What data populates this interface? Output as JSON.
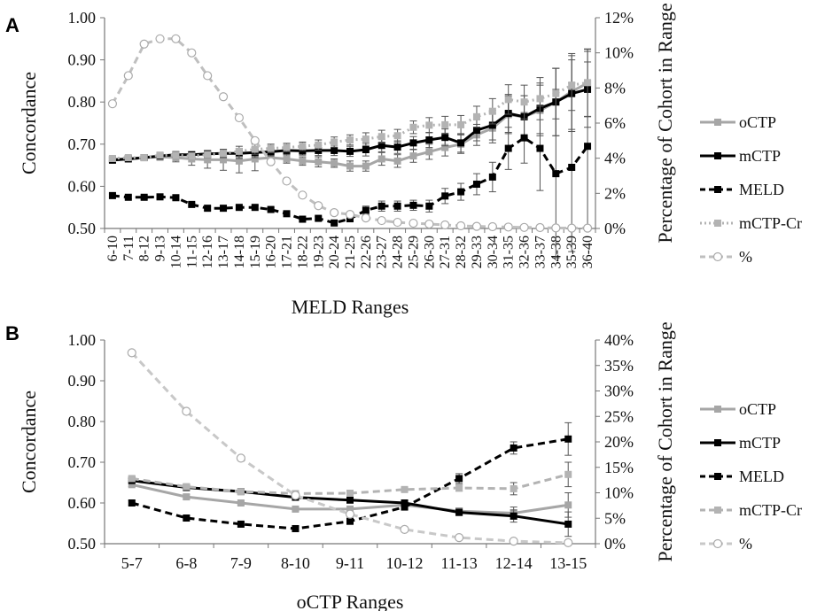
{
  "chart_data": [
    {
      "panel": "A",
      "type": "line",
      "xlabel": "MELD Ranges",
      "ylabel": "Concordance",
      "y2label": "Percentage of Cohort in Range",
      "ylim": [
        0.5,
        1.0
      ],
      "y2lim": [
        0,
        12
      ],
      "yticks": [
        "0.50",
        "0.60",
        "0.70",
        "0.80",
        "0.90",
        "1.00"
      ],
      "y2ticks": [
        "0%",
        "2%",
        "4%",
        "6%",
        "8%",
        "10%",
        "12%"
      ],
      "categories": [
        "6-10",
        "7-11",
        "8-12",
        "9-13",
        "10-14",
        "11-15",
        "12-16",
        "13-17",
        "14-18",
        "15-19",
        "16-20",
        "17-21",
        "18-22",
        "19-23",
        "20-24",
        "21-25",
        "22-26",
        "23-27",
        "24-28",
        "25-29",
        "26-30",
        "27-31",
        "28-32",
        "29-33",
        "30-34",
        "31-35",
        "32-36",
        "33-37",
        "34-38",
        "35-39",
        "36-40"
      ],
      "series": [
        {
          "name": "oCTP",
          "axis": "left",
          "color": "#a6a6a6",
          "style": "solid",
          "marker": "square",
          "values": [
            0.665,
            0.665,
            0.668,
            0.67,
            0.668,
            0.665,
            0.663,
            0.663,
            0.66,
            0.665,
            0.668,
            0.665,
            0.66,
            0.658,
            0.655,
            0.648,
            0.648,
            0.665,
            0.66,
            0.672,
            0.682,
            0.692,
            0.7,
            0.722,
            0.738,
            0.77,
            0.765,
            0.78,
            0.8,
            0.825,
            0.845
          ],
          "errors": [
            0.005,
            0.005,
            0.006,
            0.008,
            0.01,
            0.015,
            0.02,
            0.025,
            0.028,
            0.028,
            0.01,
            0.01,
            0.01,
            0.012,
            0.01,
            0.012,
            0.012,
            0.015,
            0.015,
            0.015,
            0.018,
            0.02,
            0.022,
            0.025,
            0.035,
            0.045,
            0.05,
            0.06,
            0.08,
            0.09,
            0.08
          ]
        },
        {
          "name": "mCTP",
          "axis": "left",
          "color": "#000000",
          "style": "solid",
          "marker": "square",
          "values": [
            0.662,
            0.665,
            0.668,
            0.672,
            0.675,
            0.675,
            0.677,
            0.678,
            0.678,
            0.68,
            0.682,
            0.685,
            0.684,
            0.685,
            0.685,
            0.683,
            0.687,
            0.697,
            0.693,
            0.703,
            0.71,
            0.716,
            0.703,
            0.733,
            0.745,
            0.773,
            0.765,
            0.785,
            0.8,
            0.82,
            0.83
          ],
          "errors": [
            0.005,
            0.005,
            0.005,
            0.005,
            0.006,
            0.006,
            0.008,
            0.01,
            0.012,
            0.012,
            0.01,
            0.01,
            0.01,
            0.012,
            0.012,
            0.012,
            0.015,
            0.015,
            0.015,
            0.015,
            0.018,
            0.02,
            0.022,
            0.025,
            0.035,
            0.045,
            0.05,
            0.06,
            0.08,
            0.09,
            0.09
          ]
        },
        {
          "name": "MELD",
          "axis": "left",
          "color": "#000000",
          "style": "dashed",
          "marker": "square",
          "values": [
            0.578,
            0.574,
            0.574,
            0.575,
            0.573,
            0.557,
            0.548,
            0.548,
            0.55,
            0.55,
            0.545,
            0.535,
            0.522,
            0.524,
            0.513,
            0.523,
            0.543,
            0.553,
            0.553,
            0.555,
            0.553,
            0.577,
            0.587,
            0.605,
            0.622,
            0.69,
            0.715,
            0.69,
            0.63,
            0.645,
            0.695
          ],
          "errors": [
            0.004,
            0.004,
            0.004,
            0.004,
            0.004,
            0.004,
            0.004,
            0.004,
            0.004,
            0.004,
            0.004,
            0.004,
            0.004,
            0.004,
            0.004,
            0.006,
            0.01,
            0.012,
            0.012,
            0.012,
            0.014,
            0.018,
            0.02,
            0.025,
            0.035,
            0.05,
            0.06,
            0.1,
            0.2,
            0.2,
            0.2
          ]
        },
        {
          "name": "mCTP-Cr",
          "axis": "left",
          "color": "#b3b3b3",
          "style": "dotted",
          "marker": "square",
          "values": [
            0.666,
            0.668,
            0.668,
            0.674,
            0.674,
            0.672,
            0.675,
            0.678,
            0.683,
            0.688,
            0.69,
            0.692,
            0.695,
            0.698,
            0.705,
            0.71,
            0.712,
            0.718,
            0.72,
            0.74,
            0.745,
            0.746,
            0.746,
            0.765,
            0.778,
            0.806,
            0.8,
            0.808,
            0.82,
            0.84,
            0.846
          ],
          "errors": [
            0.005,
            0.005,
            0.005,
            0.006,
            0.006,
            0.006,
            0.008,
            0.01,
            0.012,
            0.012,
            0.01,
            0.01,
            0.01,
            0.012,
            0.012,
            0.012,
            0.015,
            0.015,
            0.015,
            0.015,
            0.018,
            0.02,
            0.022,
            0.025,
            0.03,
            0.035,
            0.04,
            0.05,
            0.06,
            0.06,
            0.08
          ]
        },
        {
          "name": "%",
          "axis": "right",
          "color": "#bfbfbf",
          "style": "dashed",
          "marker": "circle",
          "values": [
            7.1,
            8.7,
            10.5,
            10.8,
            10.8,
            10.0,
            8.7,
            7.5,
            6.3,
            5.0,
            3.8,
            2.7,
            1.9,
            1.3,
            0.9,
            0.8,
            0.6,
            0.45,
            0.35,
            0.3,
            0.25,
            0.2,
            0.15,
            0.12,
            0.1,
            0.08,
            0.06,
            0.05,
            0.03,
            0.02,
            0.02
          ]
        }
      ]
    },
    {
      "panel": "B",
      "type": "line",
      "xlabel": "oCTP Ranges",
      "ylabel": "Concordance",
      "y2label": "Percentage of Cohort in Range",
      "ylim": [
        0.5,
        1.0
      ],
      "y2lim": [
        0,
        40
      ],
      "yticks": [
        "0.50",
        "0.60",
        "0.70",
        "0.80",
        "0.90",
        "1.00"
      ],
      "y2ticks": [
        "0%",
        "5%",
        "10%",
        "15%",
        "20%",
        "25%",
        "30%",
        "35%",
        "40%"
      ],
      "categories": [
        "5-7",
        "6-8",
        "7-9",
        "8-10",
        "9-11",
        "10-12",
        "11-13",
        "12-14",
        "13-15"
      ],
      "series": [
        {
          "name": "oCTP",
          "axis": "left",
          "color": "#a6a6a6",
          "style": "solid",
          "marker": "square",
          "values": [
            0.645,
            0.615,
            0.6,
            0.585,
            0.585,
            0.595,
            0.58,
            0.575,
            0.595
          ],
          "errors": [
            0.005,
            0.005,
            0.004,
            0.004,
            0.004,
            0.005,
            0.008,
            0.015,
            0.03
          ]
        },
        {
          "name": "mCTP",
          "axis": "left",
          "color": "#000000",
          "style": "solid",
          "marker": "square",
          "values": [
            0.655,
            0.638,
            0.628,
            0.614,
            0.607,
            0.6,
            0.577,
            0.568,
            0.548
          ],
          "errors": [
            0.005,
            0.005,
            0.004,
            0.004,
            0.004,
            0.005,
            0.008,
            0.015,
            0.03
          ]
        },
        {
          "name": "MELD",
          "axis": "left",
          "color": "#000000",
          "style": "dashed",
          "marker": "square",
          "values": [
            0.6,
            0.563,
            0.548,
            0.537,
            0.555,
            0.59,
            0.66,
            0.735,
            0.757
          ],
          "errors": [
            0.005,
            0.005,
            0.004,
            0.004,
            0.004,
            0.006,
            0.012,
            0.015,
            0.04
          ]
        },
        {
          "name": "mCTP-Cr",
          "axis": "left",
          "color": "#b3b3b3",
          "style": "dashed",
          "marker": "square",
          "values": [
            0.66,
            0.64,
            0.628,
            0.623,
            0.624,
            0.633,
            0.637,
            0.635,
            0.67
          ],
          "errors": [
            0.005,
            0.005,
            0.004,
            0.004,
            0.004,
            0.005,
            0.008,
            0.015,
            0.03
          ]
        },
        {
          "name": "%",
          "axis": "right",
          "color": "#c8c8c8",
          "style": "dashed",
          "marker": "circle",
          "values": [
            37.5,
            26.0,
            16.8,
            9.5,
            5.8,
            2.8,
            1.2,
            0.5,
            0.2
          ]
        }
      ]
    }
  ]
}
